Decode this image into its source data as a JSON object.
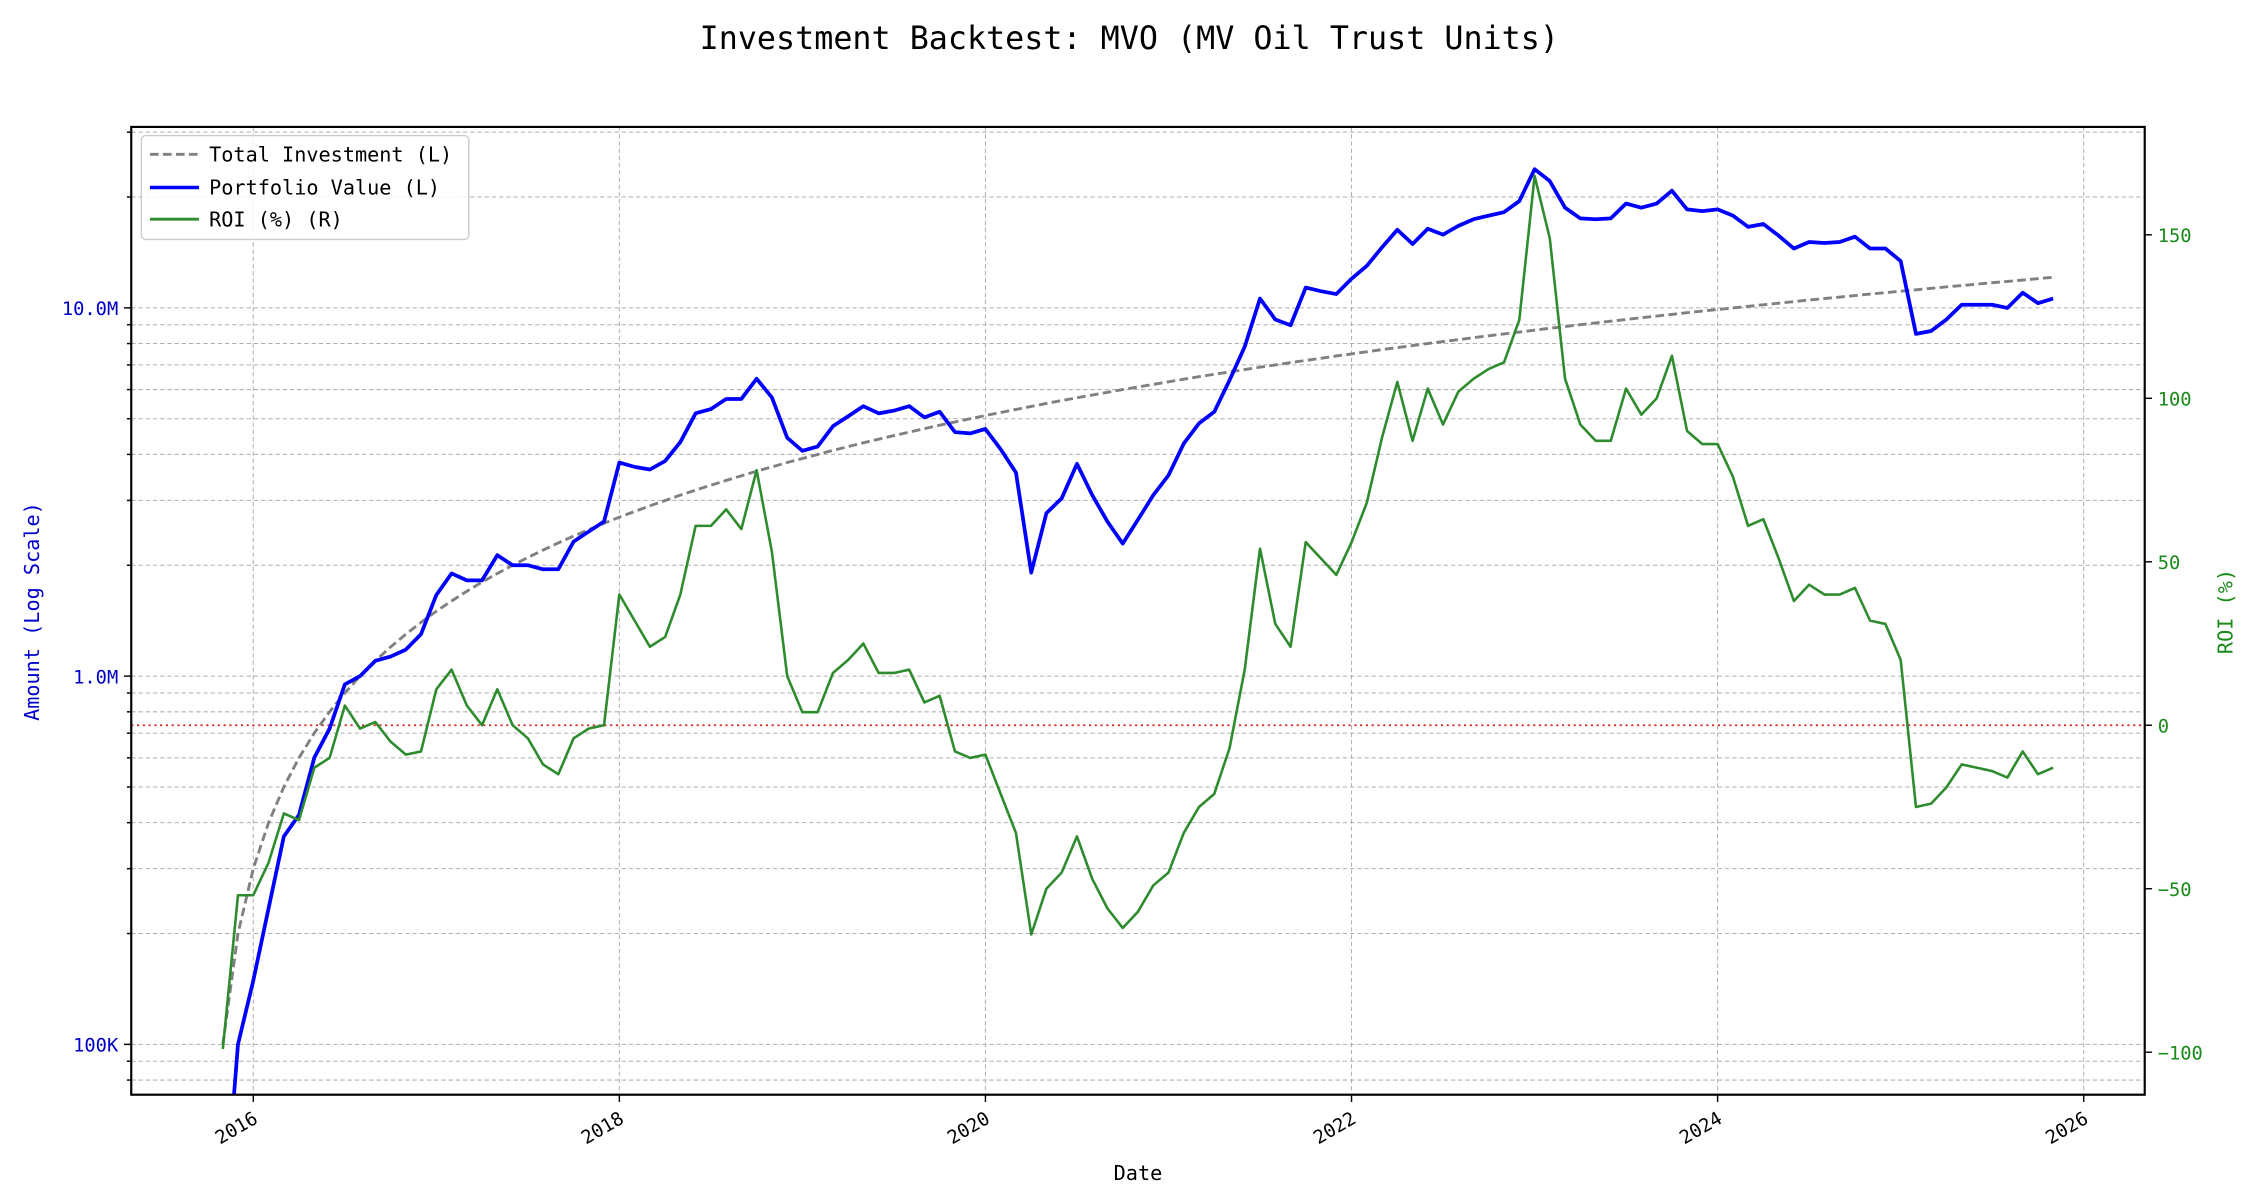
{
  "chart_data": {
    "type": "line",
    "title": "Investment Backtest: MVO (MV Oil Trust Units)",
    "xlabel": "Date",
    "ylabel_left": "Amount (Log Scale)",
    "ylabel_right": "ROI (%)",
    "left_scale": "log",
    "left_ylim": [
      73000,
      31000000
    ],
    "right_ylim": [
      -113,
      183
    ],
    "xlim": [
      "2015-05",
      "2026-05"
    ],
    "grid": true,
    "legend_position": "top-left",
    "x_ticks": [
      "2016",
      "2018",
      "2020",
      "2022",
      "2024",
      "2026"
    ],
    "left_ticks": [
      {
        "value": 100000,
        "label": "100K"
      },
      {
        "value": 1000000,
        "label": "1.0M"
      },
      {
        "value": 10000000,
        "label": "10.0M"
      }
    ],
    "right_ticks": [
      -100,
      -50,
      0,
      50,
      100,
      150
    ],
    "reference_line": {
      "value": 0,
      "axis": "right",
      "color": "#d62728"
    },
    "colors": {
      "total_investment": "#808080",
      "portfolio": "#0000ff",
      "roi": "#2e8b2e",
      "left_axis": "#0000cc",
      "right_axis": "#1a8a1a"
    },
    "dates": [
      "2015-11",
      "2015-12",
      "2016-01",
      "2016-02",
      "2016-03",
      "2016-04",
      "2016-05",
      "2016-06",
      "2016-07",
      "2016-08",
      "2016-09",
      "2016-10",
      "2016-11",
      "2016-12",
      "2017-01",
      "2017-02",
      "2017-03",
      "2017-04",
      "2017-05",
      "2017-06",
      "2017-07",
      "2017-08",
      "2017-09",
      "2017-10",
      "2017-11",
      "2017-12",
      "2018-01",
      "2018-02",
      "2018-03",
      "2018-04",
      "2018-05",
      "2018-06",
      "2018-07",
      "2018-08",
      "2018-09",
      "2018-10",
      "2018-11",
      "2018-12",
      "2019-01",
      "2019-02",
      "2019-03",
      "2019-04",
      "2019-05",
      "2019-06",
      "2019-07",
      "2019-08",
      "2019-09",
      "2019-10",
      "2019-11",
      "2019-12",
      "2020-01",
      "2020-02",
      "2020-03",
      "2020-04",
      "2020-05",
      "2020-06",
      "2020-07",
      "2020-08",
      "2020-09",
      "2020-10",
      "2020-11",
      "2020-12",
      "2021-01",
      "2021-02",
      "2021-03",
      "2021-04",
      "2021-05",
      "2021-06",
      "2021-07",
      "2021-08",
      "2021-09",
      "2021-10",
      "2021-11",
      "2021-12",
      "2022-01",
      "2022-02",
      "2022-03",
      "2022-04",
      "2022-05",
      "2022-06",
      "2022-07",
      "2022-08",
      "2022-09",
      "2022-10",
      "2022-11",
      "2022-12",
      "2023-01",
      "2023-02",
      "2023-03",
      "2023-04",
      "2023-05",
      "2023-06",
      "2023-07",
      "2023-08",
      "2023-09",
      "2023-10",
      "2023-11",
      "2023-12",
      "2024-01",
      "2024-02",
      "2024-03",
      "2024-04",
      "2024-05",
      "2024-06",
      "2024-07",
      "2024-08",
      "2024-09",
      "2024-10",
      "2024-11",
      "2024-12",
      "2025-01",
      "2025-02",
      "2025-03",
      "2025-04",
      "2025-05",
      "2025-06",
      "2025-07",
      "2025-08",
      "2025-09",
      "2025-10",
      "2025-11"
    ],
    "series": [
      {
        "name": "Total Investment (L)",
        "axis": "left",
        "style": "dashed",
        "unit": "M",
        "values": [
          0.1,
          0.2,
          0.3,
          0.4,
          0.5,
          0.6,
          0.7,
          0.8,
          0.9,
          1.0,
          1.1,
          1.2,
          1.3,
          1.4,
          1.5,
          1.6,
          1.7,
          1.8,
          1.9,
          2.0,
          2.1,
          2.2,
          2.3,
          2.4,
          2.5,
          2.6,
          2.7,
          2.8,
          2.9,
          3.0,
          3.1,
          3.2,
          3.3,
          3.4,
          3.5,
          3.6,
          3.7,
          3.8,
          3.9,
          4.0,
          4.1,
          4.2,
          4.3,
          4.4,
          4.5,
          4.6,
          4.7,
          4.8,
          4.9,
          5.0,
          5.1,
          5.2,
          5.3,
          5.4,
          5.5,
          5.6,
          5.7,
          5.8,
          5.9,
          6.0,
          6.1,
          6.2,
          6.3,
          6.4,
          6.5,
          6.6,
          6.7,
          6.8,
          6.9,
          7.0,
          7.1,
          7.2,
          7.3,
          7.4,
          7.5,
          7.6,
          7.7,
          7.8,
          7.9,
          8.0,
          8.1,
          8.2,
          8.3,
          8.4,
          8.5,
          8.6,
          8.7,
          8.8,
          8.9,
          9.0,
          9.1,
          9.2,
          9.3,
          9.4,
          9.5,
          9.6,
          9.7,
          9.8,
          9.9,
          10.0,
          10.1,
          10.2,
          10.3,
          10.4,
          10.5,
          10.6,
          10.7,
          10.8,
          10.9,
          11.0,
          11.1,
          11.2,
          11.3,
          11.4,
          11.5,
          11.6,
          11.7,
          11.8,
          11.9,
          12.0,
          12.1
        ]
      },
      {
        "name": "Portfolio Value (L)",
        "axis": "left",
        "style": "solid",
        "unit": "M",
        "values": [
          0.03,
          0.1,
          0.149,
          0.234,
          0.367,
          0.42,
          0.6,
          0.72,
          0.95,
          1.0,
          1.1,
          1.13,
          1.18,
          1.3,
          1.66,
          1.9,
          1.82,
          1.82,
          2.13,
          2.0,
          2.0,
          1.95,
          1.95,
          2.32,
          2.47,
          2.63,
          3.8,
          3.7,
          3.64,
          3.84,
          4.32,
          5.17,
          5.31,
          5.66,
          5.66,
          6.42,
          5.71,
          4.44,
          4.09,
          4.2,
          4.77,
          5.08,
          5.41,
          5.17,
          5.26,
          5.41,
          5.04,
          5.22,
          4.6,
          4.56,
          4.69,
          4.13,
          3.57,
          1.91,
          2.77,
          3.04,
          3.77,
          3.1,
          2.63,
          2.29,
          2.66,
          3.1,
          3.51,
          4.28,
          4.86,
          5.22,
          6.36,
          7.84,
          10.6,
          9.3,
          8.97,
          11.35,
          11.1,
          10.9,
          12.0,
          13.0,
          14.6,
          16.3,
          14.9,
          16.4,
          15.8,
          16.7,
          17.4,
          17.8,
          18.2,
          19.5,
          23.8,
          22.1,
          18.7,
          17.5,
          17.4,
          17.5,
          19.2,
          18.7,
          19.2,
          20.8,
          18.5,
          18.3,
          18.5,
          17.8,
          16.6,
          16.9,
          15.7,
          14.5,
          15.1,
          15.0,
          15.1,
          15.6,
          14.5,
          14.5,
          13.4,
          8.5,
          8.65,
          9.3,
          10.2,
          10.2,
          10.2,
          10.0,
          11.0,
          10.3,
          10.6
        ]
      },
      {
        "name": "ROI (%) (R)",
        "axis": "right",
        "style": "solid",
        "unit": "%",
        "values": [
          -99,
          -52,
          -52,
          -42,
          -27,
          -29,
          -13,
          -10,
          6,
          -1,
          1,
          -5,
          -9,
          -8,
          11,
          17,
          6,
          0,
          11,
          0,
          -4,
          -12,
          -15,
          -4,
          -1,
          0,
          40,
          32,
          24,
          27,
          40,
          61,
          61,
          66,
          60,
          78,
          53,
          15,
          4,
          4,
          16,
          20,
          25,
          16,
          16,
          17,
          7,
          9,
          -8,
          -10,
          -9,
          -21,
          -33,
          -64,
          -50,
          -45,
          -34,
          -47,
          -56,
          -62,
          -57,
          -49,
          -45,
          -33,
          -25,
          -21,
          -7,
          17,
          54,
          31,
          24,
          56,
          51,
          46,
          56,
          68,
          88,
          105,
          87,
          103,
          92,
          102,
          106,
          109,
          111,
          124,
          168,
          149,
          106,
          92,
          87,
          87,
          103,
          95,
          100,
          113,
          90,
          86,
          86,
          76,
          61,
          63,
          51,
          38,
          43,
          40,
          40,
          42,
          32,
          31,
          20,
          -25,
          -24,
          -19,
          -12,
          -13,
          -14,
          -16,
          -8,
          -15,
          -13
        ]
      }
    ]
  }
}
